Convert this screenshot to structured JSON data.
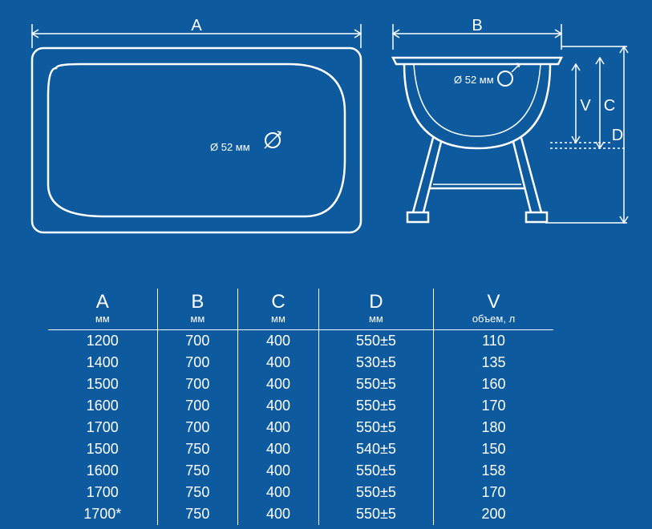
{
  "colors": {
    "background": "#0e5a9e",
    "stroke": "#ffffff",
    "text": "#ffffff"
  },
  "diagram": {
    "top_view": {
      "dim_label": "A",
      "hole_label": "Ø 52 мм"
    },
    "side_view": {
      "dim_width_label": "B",
      "dim_depth_label": "C",
      "dim_height_label": "D",
      "dim_vol_label": "V",
      "hole_label": "Ø 52 мм"
    }
  },
  "table": {
    "columns": [
      {
        "big": "A",
        "sub": "мм"
      },
      {
        "big": "B",
        "sub": "мм"
      },
      {
        "big": "C",
        "sub": "мм"
      },
      {
        "big": "D",
        "sub": "мм"
      },
      {
        "big": "V",
        "sub": "объем, л"
      }
    ],
    "rows": [
      [
        "1200",
        "700",
        "400",
        "550±5",
        "110"
      ],
      [
        "1400",
        "700",
        "400",
        "530±5",
        "135"
      ],
      [
        "1500",
        "700",
        "400",
        "550±5",
        "160"
      ],
      [
        "1600",
        "700",
        "400",
        "550±5",
        "170"
      ],
      [
        "1700",
        "700",
        "400",
        "550±5",
        "180"
      ],
      [
        "1500",
        "750",
        "400",
        "540±5",
        "150"
      ],
      [
        "1600",
        "750",
        "400",
        "550±5",
        "158"
      ],
      [
        "1700",
        "750",
        "400",
        "550±5",
        "170"
      ],
      [
        "1700*",
        "750",
        "400",
        "550±5",
        "200"
      ]
    ]
  }
}
